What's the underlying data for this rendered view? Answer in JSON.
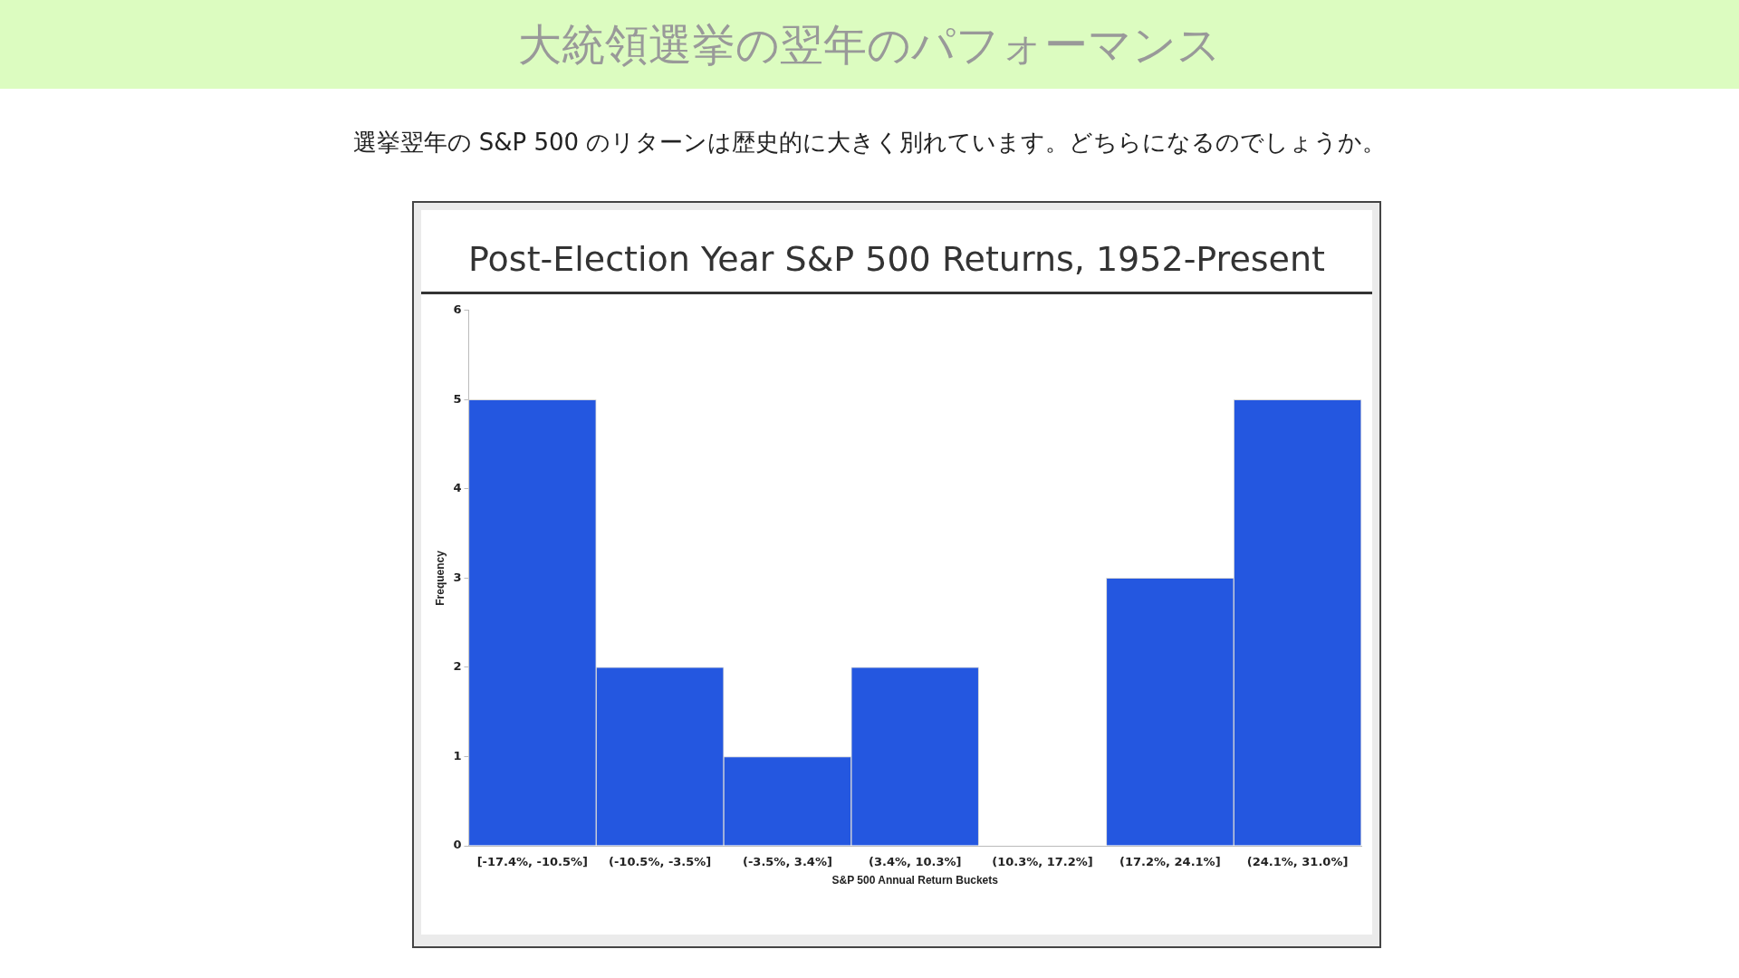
{
  "chart_data": {
    "type": "bar",
    "title": "大統領選挙の翌年のパフォーマンス",
    "subtitle": "選挙翌年の S&P 500 のリターンは歴史的に大きく別れています。どちらになるのでしょうか。",
    "annotations": [
      "Post-Election Year S&P 500 Returns, 1952-Present"
    ],
    "xlabel": "S&P 500 Annual Return Buckets",
    "ylabel": "Frequency",
    "categories": [
      "[-17.4%, -10.5%]",
      "(-10.5%, -3.5%]",
      "(-3.5%, 3.4%]",
      "(3.4%, 10.3%]",
      "(10.3%, 17.2%]",
      "(17.2%, 24.1%]",
      "(24.1%, 31.0%]"
    ],
    "values": [
      5,
      2,
      1,
      2,
      0,
      3,
      5
    ],
    "color": "#2457e0",
    "ylim": [
      0,
      6
    ],
    "yticks": [
      0,
      1,
      2,
      3,
      4,
      5,
      6
    ],
    "grid": false
  }
}
